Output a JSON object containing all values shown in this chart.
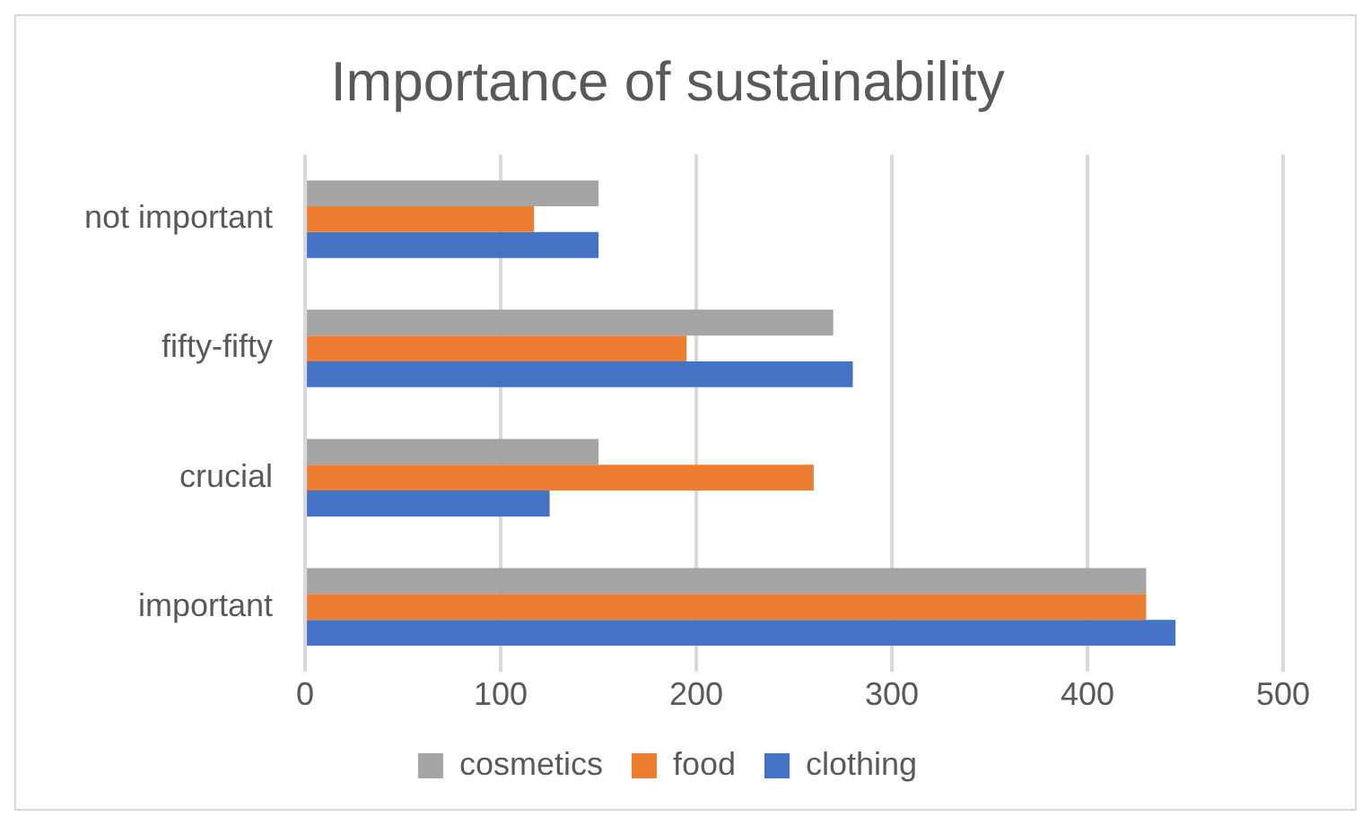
{
  "chart_data": {
    "type": "bar",
    "orientation": "horizontal",
    "title": "Importance of sustainability",
    "categories": [
      "not important",
      "fifty-fifty",
      "crucial",
      "important"
    ],
    "series": [
      {
        "name": "cosmetics",
        "color": "#a5a5a5",
        "values": [
          150,
          270,
          150,
          430
        ]
      },
      {
        "name": "food",
        "color": "#ed7d31",
        "values": [
          117,
          195,
          260,
          430
        ]
      },
      {
        "name": "clothing",
        "color": "#4472c4",
        "values": [
          150,
          280,
          125,
          445
        ]
      }
    ],
    "xlim": [
      0,
      500
    ],
    "xticks": [
      0,
      100,
      200,
      300,
      400,
      500
    ],
    "grid": "x",
    "legend": "bottom"
  }
}
